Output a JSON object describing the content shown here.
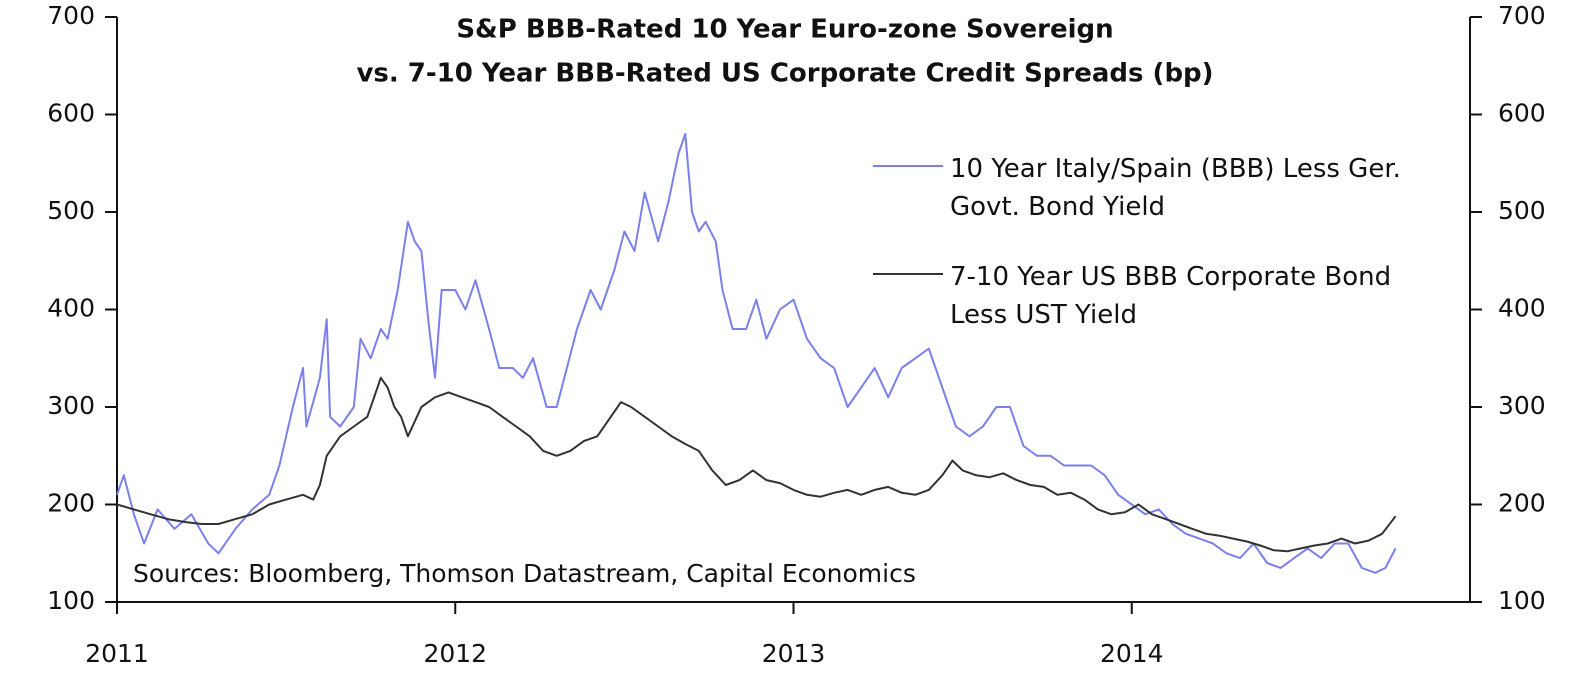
{
  "chart_data": {
    "type": "line",
    "title": [
      "S&P BBB-Rated 10 Year Euro-zone Sovereign",
      "vs. 7-10 Year BBB-Rated US Corporate Credit Spreads (bp)"
    ],
    "annotation": "Sources: Bloomberg, Thomson Datastream, Capital Economics",
    "xlim": [
      2011,
      2015
    ],
    "xticks": [
      2011,
      2012,
      2013,
      2014
    ],
    "ylim": [
      100,
      700
    ],
    "yticks": [
      100,
      200,
      300,
      400,
      500,
      600,
      700
    ],
    "y2lim": [
      100,
      700
    ],
    "y2ticks": [
      100,
      200,
      300,
      400,
      500,
      600,
      700
    ],
    "series": [
      {
        "name": "10 Year Italy/Spain  (BBB) Less Ger. Govt. Bond Yield",
        "color": "#7b80ea",
        "x": [
          2011.0,
          2011.02,
          2011.05,
          2011.08,
          2011.12,
          2011.17,
          2011.22,
          2011.27,
          2011.3,
          2011.35,
          2011.4,
          2011.45,
          2011.48,
          2011.5,
          2011.52,
          2011.55,
          2011.56,
          2011.6,
          2011.62,
          2011.63,
          2011.66,
          2011.7,
          2011.72,
          2011.75,
          2011.78,
          2011.8,
          2011.83,
          2011.86,
          2011.88,
          2011.9,
          2011.92,
          2011.94,
          2011.96,
          2012.0,
          2012.03,
          2012.06,
          2012.1,
          2012.13,
          2012.17,
          2012.2,
          2012.23,
          2012.27,
          2012.3,
          2012.33,
          2012.36,
          2012.4,
          2012.43,
          2012.47,
          2012.5,
          2012.53,
          2012.56,
          2012.6,
          2012.63,
          2012.66,
          2012.68,
          2012.7,
          2012.72,
          2012.74,
          2012.77,
          2012.79,
          2012.82,
          2012.86,
          2012.89,
          2012.92,
          2012.96,
          2013.0,
          2013.04,
          2013.08,
          2013.12,
          2013.16,
          2013.2,
          2013.24,
          2013.28,
          2013.32,
          2013.36,
          2013.4,
          2013.44,
          2013.48,
          2013.52,
          2013.56,
          2013.6,
          2013.64,
          2013.68,
          2013.72,
          2013.76,
          2013.8,
          2013.84,
          2013.88,
          2013.92,
          2013.96,
          2014.0,
          2014.04,
          2014.08,
          2014.12,
          2014.16,
          2014.2,
          2014.24,
          2014.28,
          2014.32,
          2014.36,
          2014.4,
          2014.44,
          2014.48,
          2014.52,
          2014.56,
          2014.6,
          2014.64,
          2014.68,
          2014.72,
          2014.75,
          2014.78
        ],
        "values": [
          210,
          230,
          190,
          160,
          195,
          175,
          190,
          160,
          150,
          175,
          195,
          210,
          240,
          270,
          300,
          340,
          280,
          330,
          390,
          290,
          280,
          300,
          370,
          350,
          380,
          370,
          420,
          490,
          470,
          460,
          390,
          330,
          420,
          420,
          400,
          430,
          380,
          340,
          340,
          330,
          350,
          300,
          300,
          340,
          380,
          420,
          400,
          440,
          480,
          460,
          520,
          470,
          510,
          560,
          580,
          500,
          480,
          490,
          470,
          420,
          380,
          380,
          410,
          370,
          400,
          410,
          370,
          350,
          340,
          300,
          320,
          340,
          310,
          340,
          350,
          360,
          320,
          280,
          270,
          280,
          300,
          300,
          260,
          250,
          250,
          240,
          240,
          240,
          230,
          210,
          200,
          190,
          195,
          180,
          170,
          165,
          160,
          150,
          145,
          160,
          140,
          135,
          145,
          155,
          145,
          160,
          160,
          135,
          130,
          135,
          155
        ]
      },
      {
        "name": "7-10 Year US BBB Corporate Bond Less UST Yield",
        "color": "#333333",
        "x": [
          2011.0,
          2011.05,
          2011.1,
          2011.15,
          2011.2,
          2011.25,
          2011.3,
          2011.35,
          2011.4,
          2011.45,
          2011.5,
          2011.55,
          2011.58,
          2011.6,
          2011.62,
          2011.66,
          2011.7,
          2011.74,
          2011.76,
          2011.78,
          2011.8,
          2011.82,
          2011.84,
          2011.86,
          2011.88,
          2011.9,
          2011.94,
          2011.98,
          2012.02,
          2012.06,
          2012.1,
          2012.14,
          2012.18,
          2012.22,
          2012.26,
          2012.3,
          2012.34,
          2012.38,
          2012.42,
          2012.46,
          2012.49,
          2012.52,
          2012.56,
          2012.6,
          2012.64,
          2012.68,
          2012.72,
          2012.76,
          2012.8,
          2012.84,
          2012.88,
          2012.92,
          2012.96,
          2013.0,
          2013.04,
          2013.08,
          2013.12,
          2013.16,
          2013.2,
          2013.24,
          2013.28,
          2013.32,
          2013.36,
          2013.4,
          2013.44,
          2013.47,
          2013.5,
          2013.54,
          2013.58,
          2013.62,
          2013.66,
          2013.7,
          2013.74,
          2013.78,
          2013.82,
          2013.86,
          2013.9,
          2013.94,
          2013.98,
          2014.02,
          2014.06,
          2014.1,
          2014.14,
          2014.18,
          2014.22,
          2014.26,
          2014.3,
          2014.34,
          2014.38,
          2014.42,
          2014.46,
          2014.5,
          2014.54,
          2014.58,
          2014.62,
          2014.66,
          2014.7,
          2014.74,
          2014.78
        ],
        "values": [
          200,
          195,
          190,
          185,
          182,
          180,
          180,
          185,
          190,
          200,
          205,
          210,
          205,
          220,
          250,
          270,
          280,
          290,
          310,
          330,
          320,
          300,
          290,
          270,
          285,
          300,
          310,
          315,
          310,
          305,
          300,
          290,
          280,
          270,
          255,
          250,
          255,
          265,
          270,
          290,
          305,
          300,
          290,
          280,
          270,
          262,
          255,
          235,
          220,
          225,
          235,
          225,
          222,
          215,
          210,
          208,
          212,
          215,
          210,
          215,
          218,
          212,
          210,
          215,
          230,
          245,
          235,
          230,
          228,
          232,
          225,
          220,
          218,
          210,
          212,
          205,
          195,
          190,
          192,
          200,
          190,
          185,
          180,
          175,
          170,
          168,
          165,
          162,
          158,
          153,
          152,
          155,
          158,
          160,
          165,
          160,
          163,
          170,
          188
        ]
      }
    ]
  }
}
